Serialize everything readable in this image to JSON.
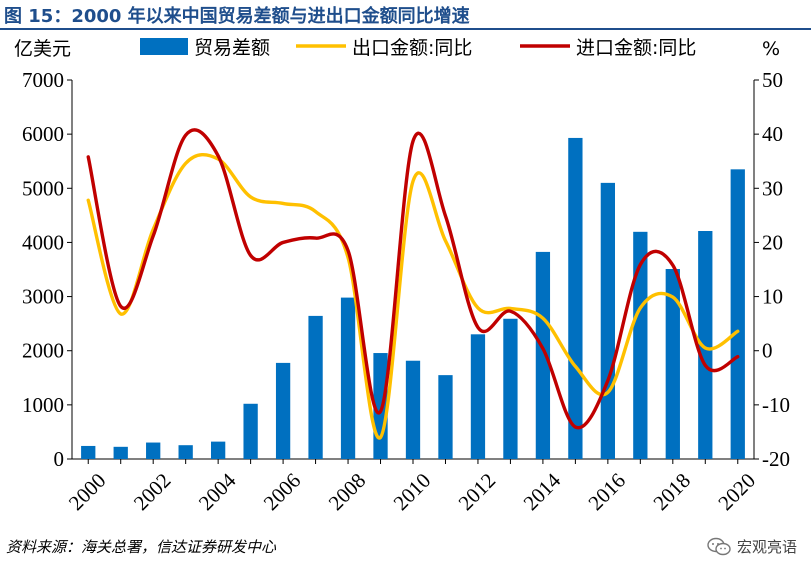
{
  "figure": {
    "title": "图 15：2000 年以来中国贸易差额与进出口金额同比增速",
    "source": "资料来源：海关总署，信达证券研发中心",
    "watermark": "宏观亮语"
  },
  "chart_data": {
    "type": "bar+line",
    "x": [
      2000,
      2001,
      2002,
      2003,
      2004,
      2005,
      2006,
      2007,
      2008,
      2009,
      2010,
      2011,
      2012,
      2013,
      2014,
      2015,
      2016,
      2017,
      2018,
      2019,
      2020
    ],
    "x_tick_labels": [
      "2000",
      "2002",
      "2004",
      "2006",
      "2008",
      "2010",
      "2012",
      "2014",
      "2016",
      "2018",
      "2020"
    ],
    "left_axis": {
      "unit_label": "亿美元",
      "ylim": [
        0,
        7000
      ],
      "ticks": [
        0,
        1000,
        2000,
        3000,
        4000,
        5000,
        6000,
        7000
      ]
    },
    "right_axis": {
      "unit_label": "%",
      "ylim": [
        -20,
        50
      ],
      "ticks": [
        -20,
        -10,
        0,
        10,
        20,
        30,
        40,
        50
      ]
    },
    "series": [
      {
        "name": "贸易差额",
        "type": "bar",
        "axis": "left",
        "color": "#0070c0",
        "values": [
          241,
          225,
          304,
          255,
          321,
          1020,
          1775,
          2643,
          2981,
          1957,
          1815,
          1549,
          2303,
          2590,
          3825,
          5930,
          5100,
          4196,
          3509,
          4211,
          5350
        ]
      },
      {
        "name": "出口金额:同比",
        "type": "line",
        "axis": "right",
        "color": "#ffc000",
        "values": [
          27.8,
          6.8,
          22.4,
          34.6,
          35.4,
          28.4,
          27.2,
          25.7,
          17.2,
          -16.0,
          31.3,
          20.3,
          7.9,
          7.8,
          6.0,
          -2.9,
          -7.7,
          7.9,
          9.9,
          0.5,
          3.6
        ]
      },
      {
        "name": "进口金额:同比",
        "type": "line",
        "axis": "right",
        "color": "#c00000",
        "values": [
          35.8,
          8.2,
          21.2,
          39.8,
          36.0,
          17.6,
          20.0,
          20.8,
          18.5,
          -11.2,
          38.7,
          24.9,
          4.3,
          7.3,
          0.4,
          -14.1,
          -5.5,
          15.9,
          15.8,
          -2.7,
          -1.1
        ]
      }
    ],
    "legend_position": "top",
    "grid": false
  }
}
